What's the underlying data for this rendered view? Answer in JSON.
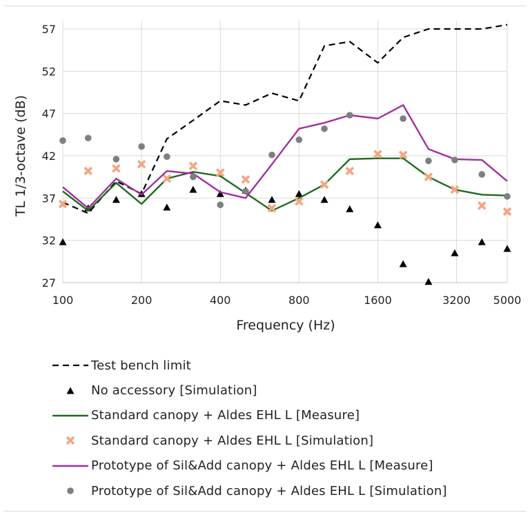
{
  "chart_data": {
    "type": "line",
    "x_scale": "log",
    "xlabel": "Frequency (Hz)",
    "ylabel": "TL 1/3-octave (dB)",
    "ylim": [
      27,
      57
    ],
    "y_ticks": [
      27,
      32,
      37,
      42,
      47,
      52,
      57
    ],
    "x_tick_labels": [
      100,
      200,
      400,
      800,
      1600,
      3200,
      5000
    ],
    "grid": true,
    "x": [
      100,
      125,
      160,
      200,
      250,
      315,
      400,
      500,
      630,
      800,
      1000,
      1250,
      1600,
      2000,
      2500,
      3150,
      4000,
      5000
    ],
    "series": [
      {
        "name": "Test bench limit",
        "style": "dashed-line",
        "color": "#000000",
        "values": [
          36.5,
          35.2,
          39.0,
          37.5,
          44.0,
          46.2,
          48.5,
          48.0,
          49.4,
          48.5,
          55.0,
          55.5,
          53.0,
          56.0,
          57.0,
          57.0,
          57.0,
          57.5
        ]
      },
      {
        "name": "No accessory [Simulation]",
        "style": "triangle-markers",
        "color": "#000000",
        "values": [
          31.8,
          35.8,
          36.8,
          37.5,
          35.9,
          38.0,
          37.5,
          37.9,
          36.8,
          37.5,
          36.8,
          35.7,
          33.8,
          29.2,
          27.1,
          30.5,
          31.8,
          31.0
        ]
      },
      {
        "name": "Standard canopy + Aldes EHL L [Measure]",
        "style": "line",
        "color": "#1e6b1e",
        "values": [
          37.8,
          35.5,
          38.8,
          36.3,
          39.3,
          40.1,
          39.6,
          37.6,
          35.5,
          37.0,
          38.6,
          41.6,
          41.7,
          41.7,
          39.5,
          38.0,
          37.4,
          37.3
        ]
      },
      {
        "name": "Standard canopy + Aldes EHL L [Simulation]",
        "style": "x-markers",
        "color": "#f4a582",
        "values": [
          36.3,
          40.2,
          40.5,
          41.0,
          39.3,
          40.8,
          40.0,
          39.2,
          35.8,
          36.6,
          38.6,
          40.2,
          42.2,
          42.1,
          39.5,
          38.0,
          36.1,
          35.4
        ]
      },
      {
        "name": "Prototype of Sil&Add canopy + Aldes EHL L [Measure]",
        "style": "line",
        "color": "#a02fa0",
        "values": [
          38.3,
          35.8,
          39.3,
          37.4,
          40.2,
          39.9,
          37.7,
          37.0,
          41.0,
          45.2,
          45.9,
          46.8,
          46.4,
          48.0,
          42.8,
          41.6,
          41.5,
          39.0
        ]
      },
      {
        "name": "Prototype of Sil&Add canopy + Aldes EHL L [Simulation]",
        "style": "circle-markers",
        "color": "#7f7f7f",
        "values": [
          43.8,
          44.1,
          41.6,
          43.1,
          41.9,
          39.5,
          36.2,
          37.8,
          42.1,
          43.9,
          45.2,
          46.8,
          null,
          46.4,
          41.4,
          41.5,
          39.8,
          37.2
        ]
      }
    ]
  }
}
